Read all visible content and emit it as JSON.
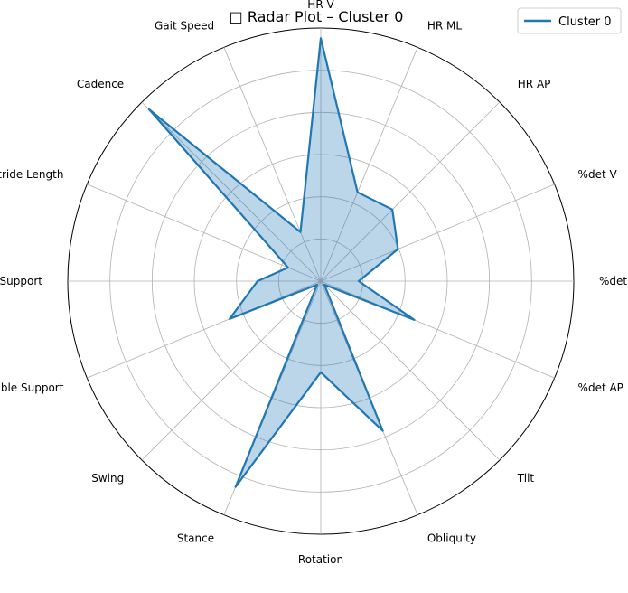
{
  "chart_data": {
    "type": "radar",
    "title": "□ Radar Plot – Cluster 0",
    "categories": [
      "HR V",
      "HR ML",
      "HR AP",
      "%det V",
      "%det ML",
      "%det AP",
      "Tilt",
      "Obliquity",
      "Rotation",
      "Stance",
      "Swing",
      "Double Support",
      "Single Support",
      "Stride Length",
      "Cadence",
      "Gait Speed"
    ],
    "series": [
      {
        "name": "Cluster 0",
        "values": [
          0.96,
          0.38,
          0.4,
          0.33,
          0.15,
          0.4,
          0.02,
          0.64,
          0.36,
          0.88,
          0.02,
          0.39,
          0.25,
          0.14,
          0.96,
          0.21
        ]
      }
    ],
    "rlim": [
      0,
      1
    ],
    "rings": 6,
    "grid": true,
    "legend": "top-right",
    "colors": {
      "line": "#1f77b4",
      "fill": "#1f77b4",
      "grid": "#b0b0b0"
    }
  }
}
